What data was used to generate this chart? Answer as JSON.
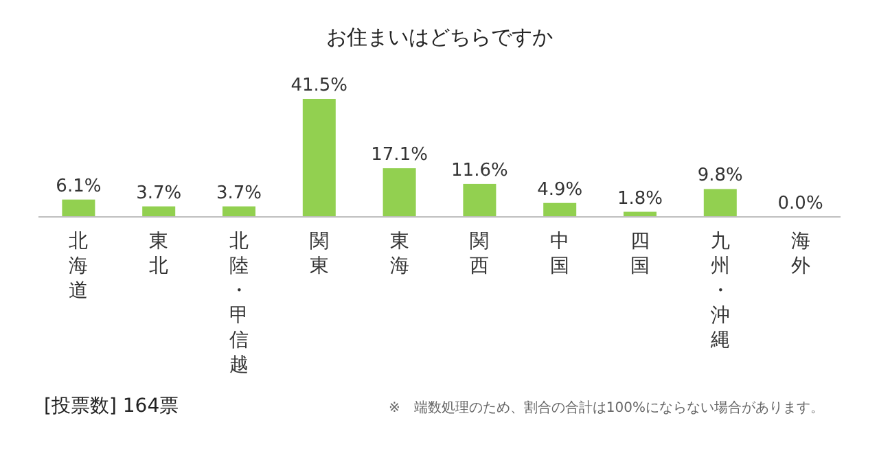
{
  "chart_data": {
    "type": "bar",
    "title": "お住まいはどちらですか",
    "categories": [
      "北海道",
      "東北",
      "北陸・甲信越",
      "関東",
      "東海",
      "関西",
      "中国",
      "四国",
      "九州・沖縄",
      "海外"
    ],
    "values": [
      6.1,
      3.7,
      3.7,
      41.5,
      17.1,
      11.6,
      4.9,
      1.8,
      9.8,
      0.0
    ],
    "value_labels": [
      "6.1%",
      "3.7%",
      "3.7%",
      "41.5%",
      "17.1%",
      "11.6%",
      "4.9%",
      "1.8%",
      "9.8%",
      "0.0%"
    ],
    "color": "#92d050",
    "annotations": [
      "[投票数]  164票",
      "※　端数処理のため、割合の合計は100%にならない場合があります。"
    ]
  }
}
